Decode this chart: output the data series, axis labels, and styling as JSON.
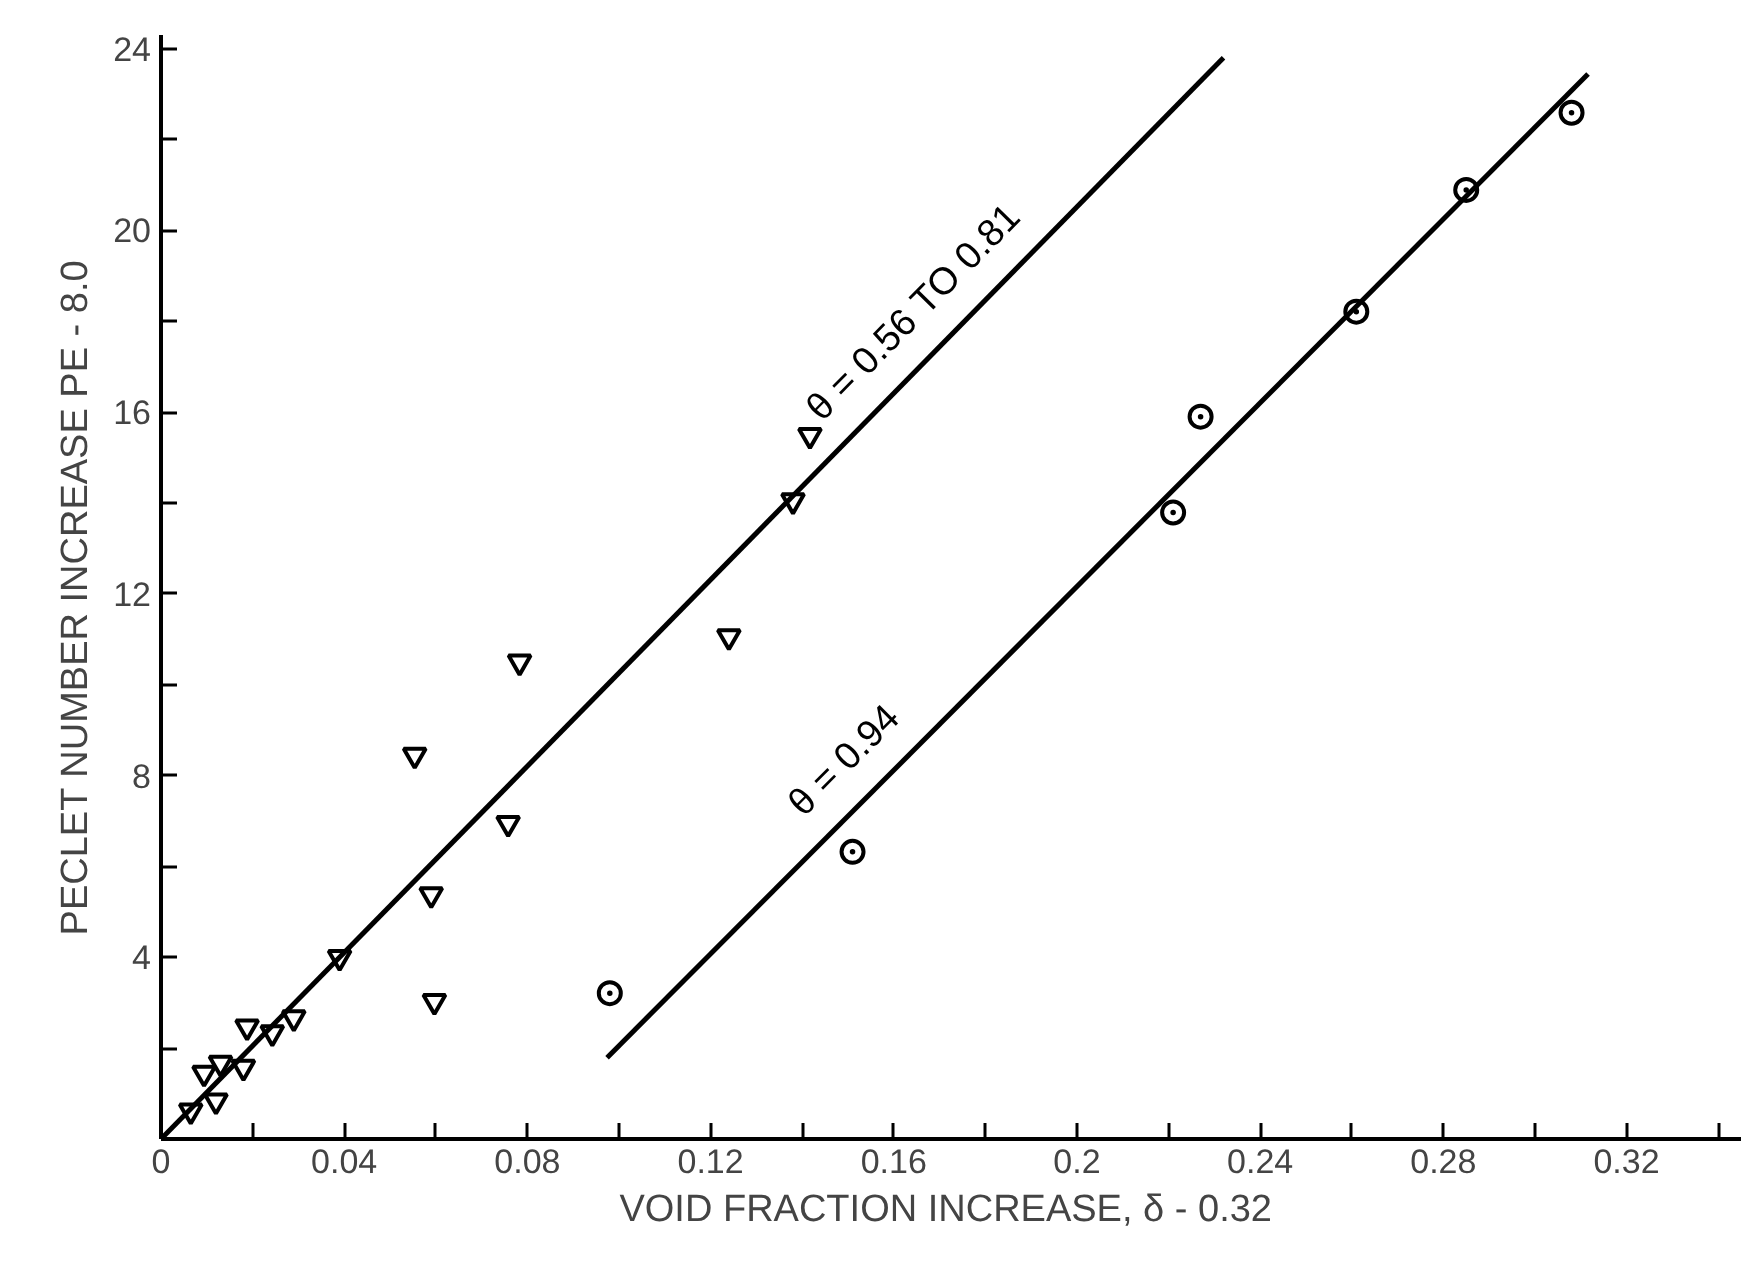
{
  "chart_data": {
    "type": "scatter",
    "xlabel": "VOID FRACTION  INCREASE, δ - 0.32",
    "ylabel": "PECLET NUMBER  INCREASE  PE - 8.0",
    "xlim": [
      0,
      0.345
    ],
    "ylim": [
      0,
      24.3
    ],
    "xticks": [
      0,
      {
        "value": 0.02,
        "label": null
      },
      0.04,
      {
        "value": 0.06,
        "label": null
      },
      0.08,
      {
        "value": 0.1,
        "label": null
      },
      0.12,
      {
        "value": 0.14,
        "label": null
      },
      0.16,
      {
        "value": 0.18,
        "label": null
      },
      0.2,
      {
        "value": 0.22,
        "label": null
      },
      0.24,
      {
        "value": 0.26,
        "label": null
      },
      0.28,
      {
        "value": 0.3,
        "label": null
      },
      0.32,
      {
        "value": 0.34,
        "label": null
      }
    ],
    "yticks": [
      {
        "value": 2,
        "label": null
      },
      4,
      {
        "value": 6,
        "label": null
      },
      8,
      {
        "value": 10,
        "label": null
      },
      12,
      {
        "value": 14,
        "label": null
      },
      16,
      {
        "value": 18,
        "label": null
      },
      20,
      {
        "value": 22,
        "label": null
      },
      24
    ],
    "grid": false,
    "series": [
      {
        "marker": "triangle_down",
        "color": "#000000",
        "x": [
          0.0065,
          0.012,
          0.0094,
          0.013,
          0.018,
          0.0188,
          0.0243,
          0.029,
          0.039,
          0.0554,
          0.059,
          0.0597,
          0.0758,
          0.0783,
          0.124,
          0.138,
          0.1417
        ],
        "values": [
          0.62,
          0.84,
          1.45,
          1.67,
          1.58,
          2.47,
          2.34,
          2.67,
          4.0,
          8.45,
          5.38,
          3.03,
          6.95,
          10.5,
          11.06,
          14.05,
          15.49
        ]
      },
      {
        "marker": "circle_dot",
        "color": "#000000",
        "x": [
          0.098,
          0.151,
          0.221,
          0.227,
          0.261,
          0.285,
          0.308
        ],
        "values": [
          3.21,
          6.32,
          13.79,
          15.9,
          18.21,
          20.89,
          22.59
        ]
      },
      {
        "type": "line",
        "color": "#000000",
        "x": [
          0,
          0.232
        ],
        "values": [
          0,
          23.8
        ]
      },
      {
        "type": "line",
        "color": "#000000",
        "x": [
          0.0974,
          0.3116
        ],
        "values": [
          1.79,
          23.44
        ]
      }
    ],
    "annotations": [
      {
        "text": "θ = 0.56 TO 0.81",
        "x": 0.149,
        "y": 15.3
      },
      {
        "text": "θ = 0.94",
        "x": 0.145,
        "y": 6.6
      }
    ]
  }
}
